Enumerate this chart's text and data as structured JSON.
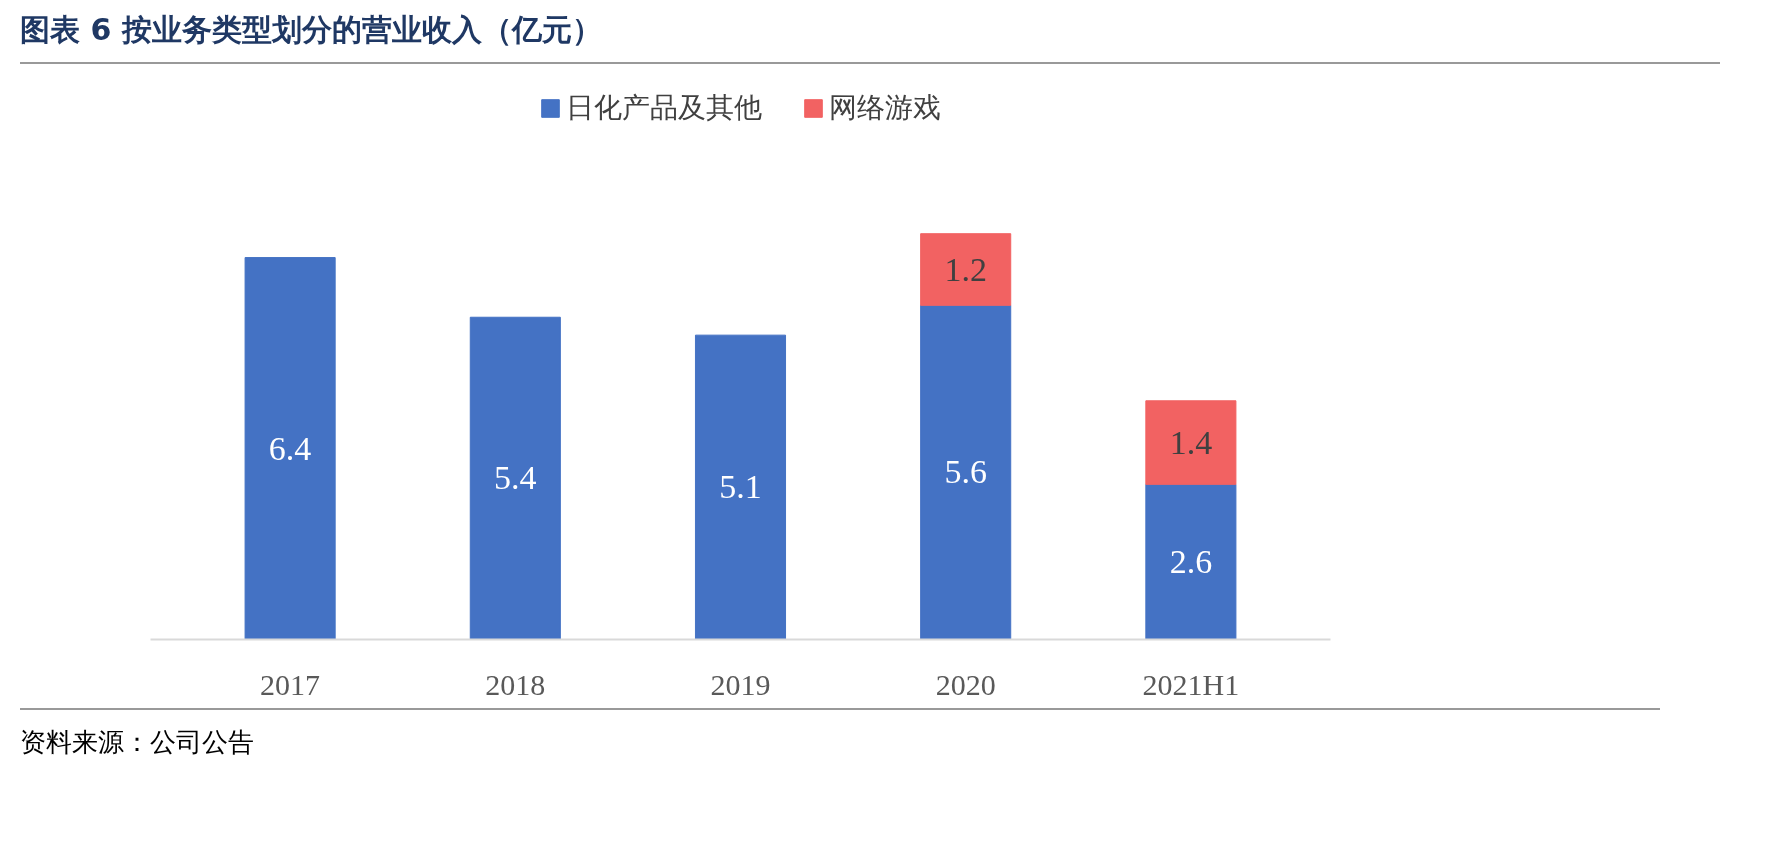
{
  "chart_data": {
    "type": "bar",
    "title": "图表 6 按业务类型划分的营业收入（亿元）",
    "categories": [
      "2017",
      "2018",
      "2019",
      "2020",
      "2021H1"
    ],
    "stacked": true,
    "data_labels": true,
    "legend": "top",
    "grid": false,
    "series": [
      {
        "name": "日化产品及其他",
        "color": "#4472c4",
        "values": [
          6.4,
          5.4,
          5.1,
          5.6,
          2.6
        ]
      },
      {
        "name": "网络游戏",
        "color": "#f26262",
        "values": [
          null,
          null,
          null,
          1.2,
          1.4
        ]
      }
    ],
    "annotations": [
      "资料来源：公司公告"
    ]
  }
}
